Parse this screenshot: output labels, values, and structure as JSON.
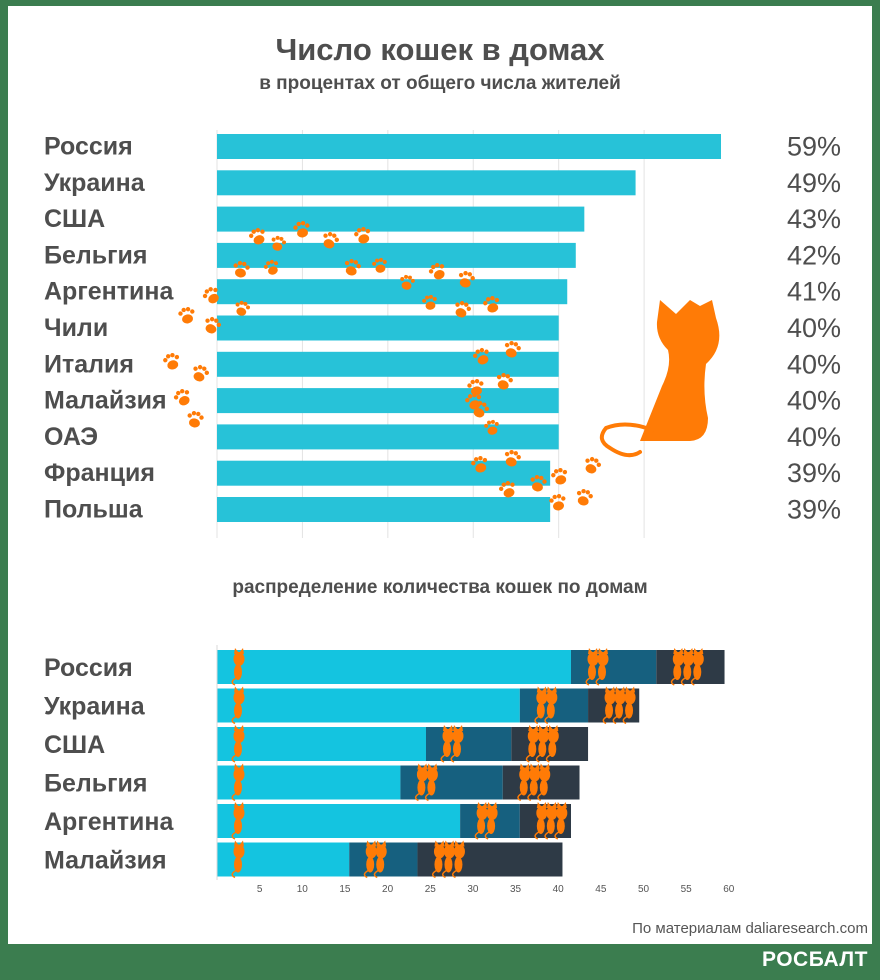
{
  "title": "Число кошек в домах",
  "subtitle": "в процентах от общего числа жителей",
  "subtitle2": "распределение количества кошек по домам",
  "source": "По материалам daliaresearch.com",
  "brand": "РОСБАЛТ",
  "colors": {
    "background": "#3b7d4f",
    "bar": "#27c2d8",
    "one_cat": "#14c4e0",
    "two_cats": "#16607f",
    "three_cats": "#2e3a46",
    "cat": "#ff7b06",
    "text": "#4e4e4e"
  },
  "chart_data": [
    {
      "type": "bar",
      "orientation": "horizontal",
      "categories": [
        "Россия",
        "Украина",
        "США",
        "Бельгия",
        "Аргентина",
        "Чили",
        "Италия",
        "Малайзия",
        "ОАЭ",
        "Франция",
        "Польша"
      ],
      "values": [
        59,
        49,
        43,
        42,
        41,
        40,
        40,
        40,
        40,
        39,
        39
      ],
      "value_labels": [
        "59%",
        "49%",
        "43%",
        "42%",
        "41%",
        "40%",
        "40%",
        "40%",
        "40%",
        "39%",
        "39%"
      ],
      "xlim": [
        0,
        60
      ],
      "grid": true
    },
    {
      "type": "bar",
      "orientation": "horizontal",
      "stacked": true,
      "categories": [
        "Россия",
        "Украина",
        "США",
        "Бельгия",
        "Аргентина",
        "Малайзия"
      ],
      "series": [
        {
          "values": [
            41.5,
            35.5,
            24.5,
            21.5,
            28.5,
            15.5
          ]
        },
        {
          "values": [
            10,
            8,
            10,
            12,
            7,
            8
          ]
        },
        {
          "values": [
            8,
            6,
            9,
            9,
            6,
            17
          ]
        }
      ],
      "xticks": [
        "5",
        "10",
        "15",
        "20",
        "25",
        "30",
        "35",
        "40",
        "45",
        "50",
        "55",
        "60"
      ],
      "xlim": [
        0,
        60
      ],
      "grid": false
    }
  ]
}
